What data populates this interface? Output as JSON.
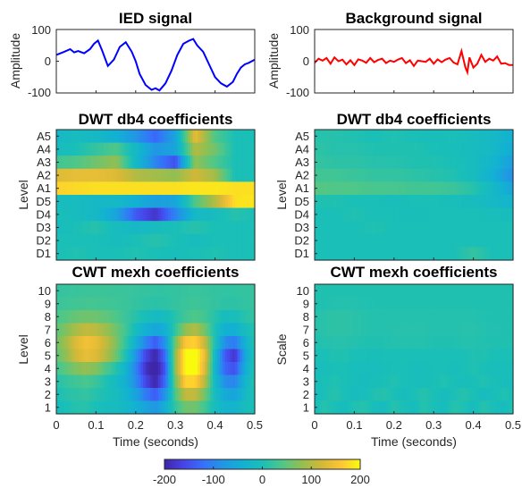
{
  "chart_data": [
    {
      "type": "line",
      "title": "IED signal",
      "xlabel": "",
      "ylabel": "Amplitude",
      "xlim": [
        0,
        0.5
      ],
      "ylim": [
        -100,
        100
      ],
      "yticks": [
        -100,
        0,
        100
      ],
      "color": "#0000ff",
      "x": [
        0,
        0.02,
        0.035,
        0.045,
        0.055,
        0.07,
        0.085,
        0.095,
        0.105,
        0.115,
        0.13,
        0.145,
        0.16,
        0.175,
        0.19,
        0.2,
        0.21,
        0.225,
        0.24,
        0.25,
        0.26,
        0.275,
        0.29,
        0.305,
        0.32,
        0.335,
        0.345,
        0.355,
        0.37,
        0.385,
        0.4,
        0.415,
        0.43,
        0.445,
        0.455,
        0.465,
        0.475,
        0.485,
        0.5
      ],
      "y": [
        20,
        30,
        38,
        28,
        32,
        25,
        38,
        55,
        65,
        35,
        -15,
        5,
        45,
        60,
        30,
        0,
        -40,
        -75,
        -90,
        -85,
        -92,
        -70,
        -30,
        20,
        55,
        65,
        70,
        50,
        30,
        -10,
        -50,
        -70,
        -80,
        -65,
        -40,
        -20,
        -10,
        -5,
        5
      ]
    },
    {
      "type": "line",
      "title": "Background signal",
      "xlabel": "",
      "ylabel": "Amplitude",
      "xlim": [
        0,
        0.5
      ],
      "ylim": [
        -100,
        100
      ],
      "yticks": [
        -100,
        0,
        100
      ],
      "color": "#ff0000",
      "x": [
        0,
        0.01,
        0.02,
        0.03,
        0.04,
        0.05,
        0.06,
        0.07,
        0.08,
        0.09,
        0.1,
        0.11,
        0.12,
        0.13,
        0.14,
        0.15,
        0.16,
        0.17,
        0.18,
        0.19,
        0.2,
        0.21,
        0.22,
        0.23,
        0.24,
        0.25,
        0.26,
        0.27,
        0.28,
        0.29,
        0.3,
        0.31,
        0.32,
        0.33,
        0.34,
        0.35,
        0.36,
        0.37,
        0.38,
        0.385,
        0.39,
        0.4,
        0.41,
        0.42,
        0.43,
        0.44,
        0.45,
        0.46,
        0.47,
        0.48,
        0.49,
        0.5
      ],
      "y": [
        -5,
        8,
        2,
        10,
        -8,
        12,
        0,
        5,
        -10,
        3,
        -12,
        6,
        2,
        -5,
        10,
        -3,
        4,
        8,
        -6,
        2,
        -2,
        5,
        10,
        -6,
        3,
        -15,
        2,
        0,
        -2,
        8,
        -8,
        6,
        -3,
        5,
        10,
        -4,
        -10,
        32,
        -20,
        -35,
        12,
        -20,
        -8,
        20,
        -2,
        8,
        2,
        15,
        -8,
        -6,
        -12,
        -12
      ]
    },
    {
      "type": "heatmap",
      "title": "DWT db4 coefficients",
      "xlabel": "",
      "ylabel": "Level",
      "xlim": [
        0,
        0.5
      ],
      "clim": [
        -200,
        200
      ],
      "rows": [
        "A5",
        "A4",
        "A3",
        "A2",
        "A1",
        "D5",
        "D4",
        "D3",
        "D2",
        "D1"
      ],
      "x": [
        0,
        0.05,
        0.1,
        0.15,
        0.2,
        0.25,
        0.3,
        0.35,
        0.4,
        0.45,
        0.5
      ],
      "values": [
        [
          -20,
          -10,
          -20,
          -40,
          -80,
          -130,
          -60,
          140,
          40,
          0,
          0
        ],
        [
          -10,
          0,
          20,
          40,
          -20,
          -80,
          -60,
          100,
          60,
          0,
          0
        ],
        [
          30,
          40,
          60,
          80,
          -20,
          -100,
          -150,
          80,
          40,
          0,
          0
        ],
        [
          130,
          140,
          140,
          130,
          100,
          90,
          80,
          120,
          90,
          0,
          0
        ],
        [
          170,
          175,
          180,
          180,
          180,
          180,
          180,
          185,
          185,
          180,
          180
        ],
        [
          -10,
          -10,
          -20,
          -20,
          -40,
          -70,
          -60,
          40,
          100,
          180,
          185
        ],
        [
          0,
          -10,
          -20,
          -60,
          -140,
          -180,
          -100,
          -20,
          -10,
          10,
          0
        ],
        [
          -10,
          0,
          10,
          -10,
          -20,
          -10,
          0,
          10,
          0,
          0,
          0
        ],
        [
          0,
          0,
          0,
          -10,
          0,
          10,
          0,
          -10,
          0,
          0,
          0
        ],
        [
          0,
          5,
          0,
          0,
          5,
          0,
          -5,
          0,
          5,
          0,
          0
        ]
      ]
    },
    {
      "type": "heatmap",
      "title": "DWT db4 coefficients",
      "xlabel": "",
      "ylabel": "Level",
      "xlim": [
        0,
        0.5
      ],
      "clim": [
        -200,
        200
      ],
      "rows": [
        "A5",
        "A4",
        "A3",
        "A2",
        "A1",
        "D5",
        "D4",
        "D3",
        "D2",
        "D1"
      ],
      "x": [
        0,
        0.05,
        0.1,
        0.15,
        0.2,
        0.25,
        0.3,
        0.35,
        0.4,
        0.45,
        0.5
      ],
      "values": [
        [
          10,
          10,
          5,
          0,
          5,
          0,
          -5,
          0,
          -10,
          -20,
          -40
        ],
        [
          15,
          10,
          10,
          5,
          5,
          5,
          0,
          -5,
          -10,
          -20,
          -50
        ],
        [
          20,
          15,
          15,
          10,
          10,
          5,
          5,
          0,
          -10,
          -30,
          -70
        ],
        [
          30,
          30,
          25,
          20,
          20,
          15,
          10,
          5,
          -10,
          -40,
          -90
        ],
        [
          45,
          40,
          40,
          35,
          35,
          30,
          30,
          25,
          10,
          -20,
          -60
        ],
        [
          5,
          5,
          0,
          0,
          -5,
          0,
          0,
          -5,
          -10,
          -20,
          -30
        ],
        [
          0,
          0,
          5,
          0,
          0,
          -5,
          0,
          0,
          0,
          -5,
          -10
        ],
        [
          0,
          0,
          0,
          5,
          0,
          0,
          0,
          0,
          0,
          0,
          0
        ],
        [
          0,
          0,
          0,
          0,
          0,
          0,
          0,
          0,
          0,
          0,
          0
        ],
        [
          0,
          0,
          0,
          0,
          0,
          0,
          0,
          0,
          20,
          0,
          0
        ]
      ]
    },
    {
      "type": "heatmap",
      "title": "CWT mexh coefficients",
      "xlabel": "Time (seconds)",
      "ylabel": "Level",
      "xlim": [
        0,
        0.5
      ],
      "xticks": [
        0,
        0.1,
        0.2,
        0.3,
        0.4,
        0.5
      ],
      "clim": [
        -200,
        200
      ],
      "rows": [
        "10",
        "9",
        "8",
        "7",
        "6",
        "5",
        "4",
        "3",
        "2",
        "1"
      ],
      "x": [
        0,
        0.025,
        0.05,
        0.075,
        0.1,
        0.125,
        0.15,
        0.175,
        0.2,
        0.225,
        0.25,
        0.275,
        0.3,
        0.325,
        0.35,
        0.375,
        0.4,
        0.425,
        0.45,
        0.475,
        0.5
      ],
      "values": [
        [
          20,
          22,
          24,
          25,
          26,
          26,
          25,
          24,
          22,
          20,
          18,
          18,
          20,
          22,
          24,
          22,
          20,
          18,
          18,
          20,
          22
        ],
        [
          25,
          28,
          30,
          32,
          32,
          30,
          28,
          25,
          20,
          15,
          12,
          15,
          20,
          25,
          28,
          25,
          20,
          15,
          15,
          18,
          22
        ],
        [
          35,
          45,
          55,
          60,
          58,
          50,
          40,
          25,
          10,
          -5,
          -15,
          -10,
          10,
          30,
          40,
          30,
          10,
          -10,
          -5,
          10,
          20
        ],
        [
          50,
          70,
          95,
          110,
          105,
          85,
          60,
          30,
          -10,
          -40,
          -60,
          -40,
          20,
          80,
          100,
          60,
          0,
          -40,
          -40,
          -10,
          10
        ],
        [
          60,
          90,
          130,
          150,
          140,
          110,
          70,
          20,
          -40,
          -100,
          -140,
          -80,
          60,
          160,
          170,
          110,
          0,
          -90,
          -110,
          -40,
          10
        ],
        [
          50,
          80,
          120,
          140,
          130,
          100,
          60,
          0,
          -80,
          -160,
          -200,
          -120,
          80,
          200,
          210,
          140,
          -20,
          -140,
          -180,
          -60,
          10
        ],
        [
          30,
          50,
          70,
          80,
          70,
          40,
          10,
          -30,
          -100,
          -180,
          -220,
          -140,
          80,
          200,
          210,
          130,
          -30,
          -130,
          -150,
          -50,
          10
        ],
        [
          10,
          20,
          30,
          35,
          25,
          5,
          -15,
          -40,
          -90,
          -160,
          -200,
          -120,
          60,
          170,
          170,
          100,
          -20,
          -90,
          -100,
          -30,
          10
        ],
        [
          0,
          10,
          15,
          20,
          10,
          0,
          -10,
          -30,
          -60,
          -110,
          -140,
          -80,
          40,
          110,
          110,
          60,
          -10,
          -50,
          -60,
          -20,
          5
        ],
        [
          -10,
          0,
          10,
          10,
          0,
          -10,
          -10,
          -20,
          -40,
          -60,
          -80,
          -40,
          20,
          60,
          60,
          30,
          -10,
          -30,
          -30,
          -10,
          0
        ]
      ]
    },
    {
      "type": "heatmap",
      "title": "CWT mexh coefficients",
      "xlabel": "Time (seconds)",
      "ylabel": "Scale",
      "xlim": [
        0,
        0.5
      ],
      "xticks": [
        0,
        0.1,
        0.2,
        0.3,
        0.4,
        0.5
      ],
      "clim": [
        -200,
        200
      ],
      "rows": [
        "10",
        "9",
        "8",
        "7",
        "6",
        "5",
        "4",
        "3",
        "2",
        "1"
      ],
      "x": [
        0,
        0.025,
        0.05,
        0.075,
        0.1,
        0.125,
        0.15,
        0.175,
        0.2,
        0.225,
        0.25,
        0.275,
        0.3,
        0.325,
        0.35,
        0.375,
        0.4,
        0.425,
        0.45,
        0.475,
        0.5
      ],
      "values": [
        [
          5,
          5,
          5,
          5,
          5,
          5,
          5,
          5,
          5,
          5,
          5,
          5,
          5,
          5,
          5,
          5,
          5,
          5,
          5,
          5,
          5
        ],
        [
          5,
          5,
          8,
          8,
          8,
          6,
          5,
          5,
          5,
          5,
          5,
          5,
          5,
          5,
          5,
          5,
          5,
          5,
          5,
          5,
          5
        ],
        [
          10,
          12,
          15,
          15,
          12,
          10,
          8,
          8,
          8,
          8,
          8,
          8,
          8,
          8,
          8,
          8,
          8,
          6,
          5,
          5,
          5
        ],
        [
          10,
          12,
          15,
          15,
          12,
          10,
          8,
          8,
          10,
          10,
          10,
          10,
          8,
          8,
          8,
          10,
          10,
          8,
          6,
          5,
          5
        ],
        [
          5,
          8,
          10,
          10,
          8,
          5,
          5,
          5,
          8,
          8,
          8,
          8,
          5,
          5,
          5,
          8,
          8,
          6,
          5,
          5,
          5
        ],
        [
          0,
          0,
          5,
          5,
          0,
          0,
          -5,
          0,
          0,
          0,
          0,
          0,
          0,
          0,
          0,
          0,
          5,
          5,
          0,
          0,
          0
        ],
        [
          -5,
          -5,
          0,
          0,
          -5,
          -5,
          -5,
          -5,
          0,
          0,
          -5,
          -5,
          0,
          0,
          -5,
          0,
          5,
          0,
          -5,
          -5,
          0
        ],
        [
          -5,
          0,
          5,
          0,
          -5,
          -10,
          -5,
          0,
          5,
          0,
          -5,
          -5,
          0,
          5,
          0,
          -5,
          0,
          5,
          0,
          -5,
          -5
        ],
        [
          -10,
          0,
          10,
          0,
          -10,
          -5,
          5,
          10,
          0,
          -10,
          0,
          10,
          0,
          -10,
          0,
          10,
          0,
          -10,
          -5,
          5,
          0
        ],
        [
          -5,
          10,
          0,
          -10,
          5,
          10,
          -5,
          -10,
          10,
          0,
          -10,
          10,
          0,
          -10,
          10,
          5,
          -10,
          10,
          0,
          -10,
          5
        ]
      ]
    }
  ],
  "colorbar": {
    "ticks": [
      -200,
      -100,
      0,
      100,
      200
    ],
    "tick_labels": [
      "-200",
      "-100",
      "0",
      "100",
      "200"
    ]
  }
}
